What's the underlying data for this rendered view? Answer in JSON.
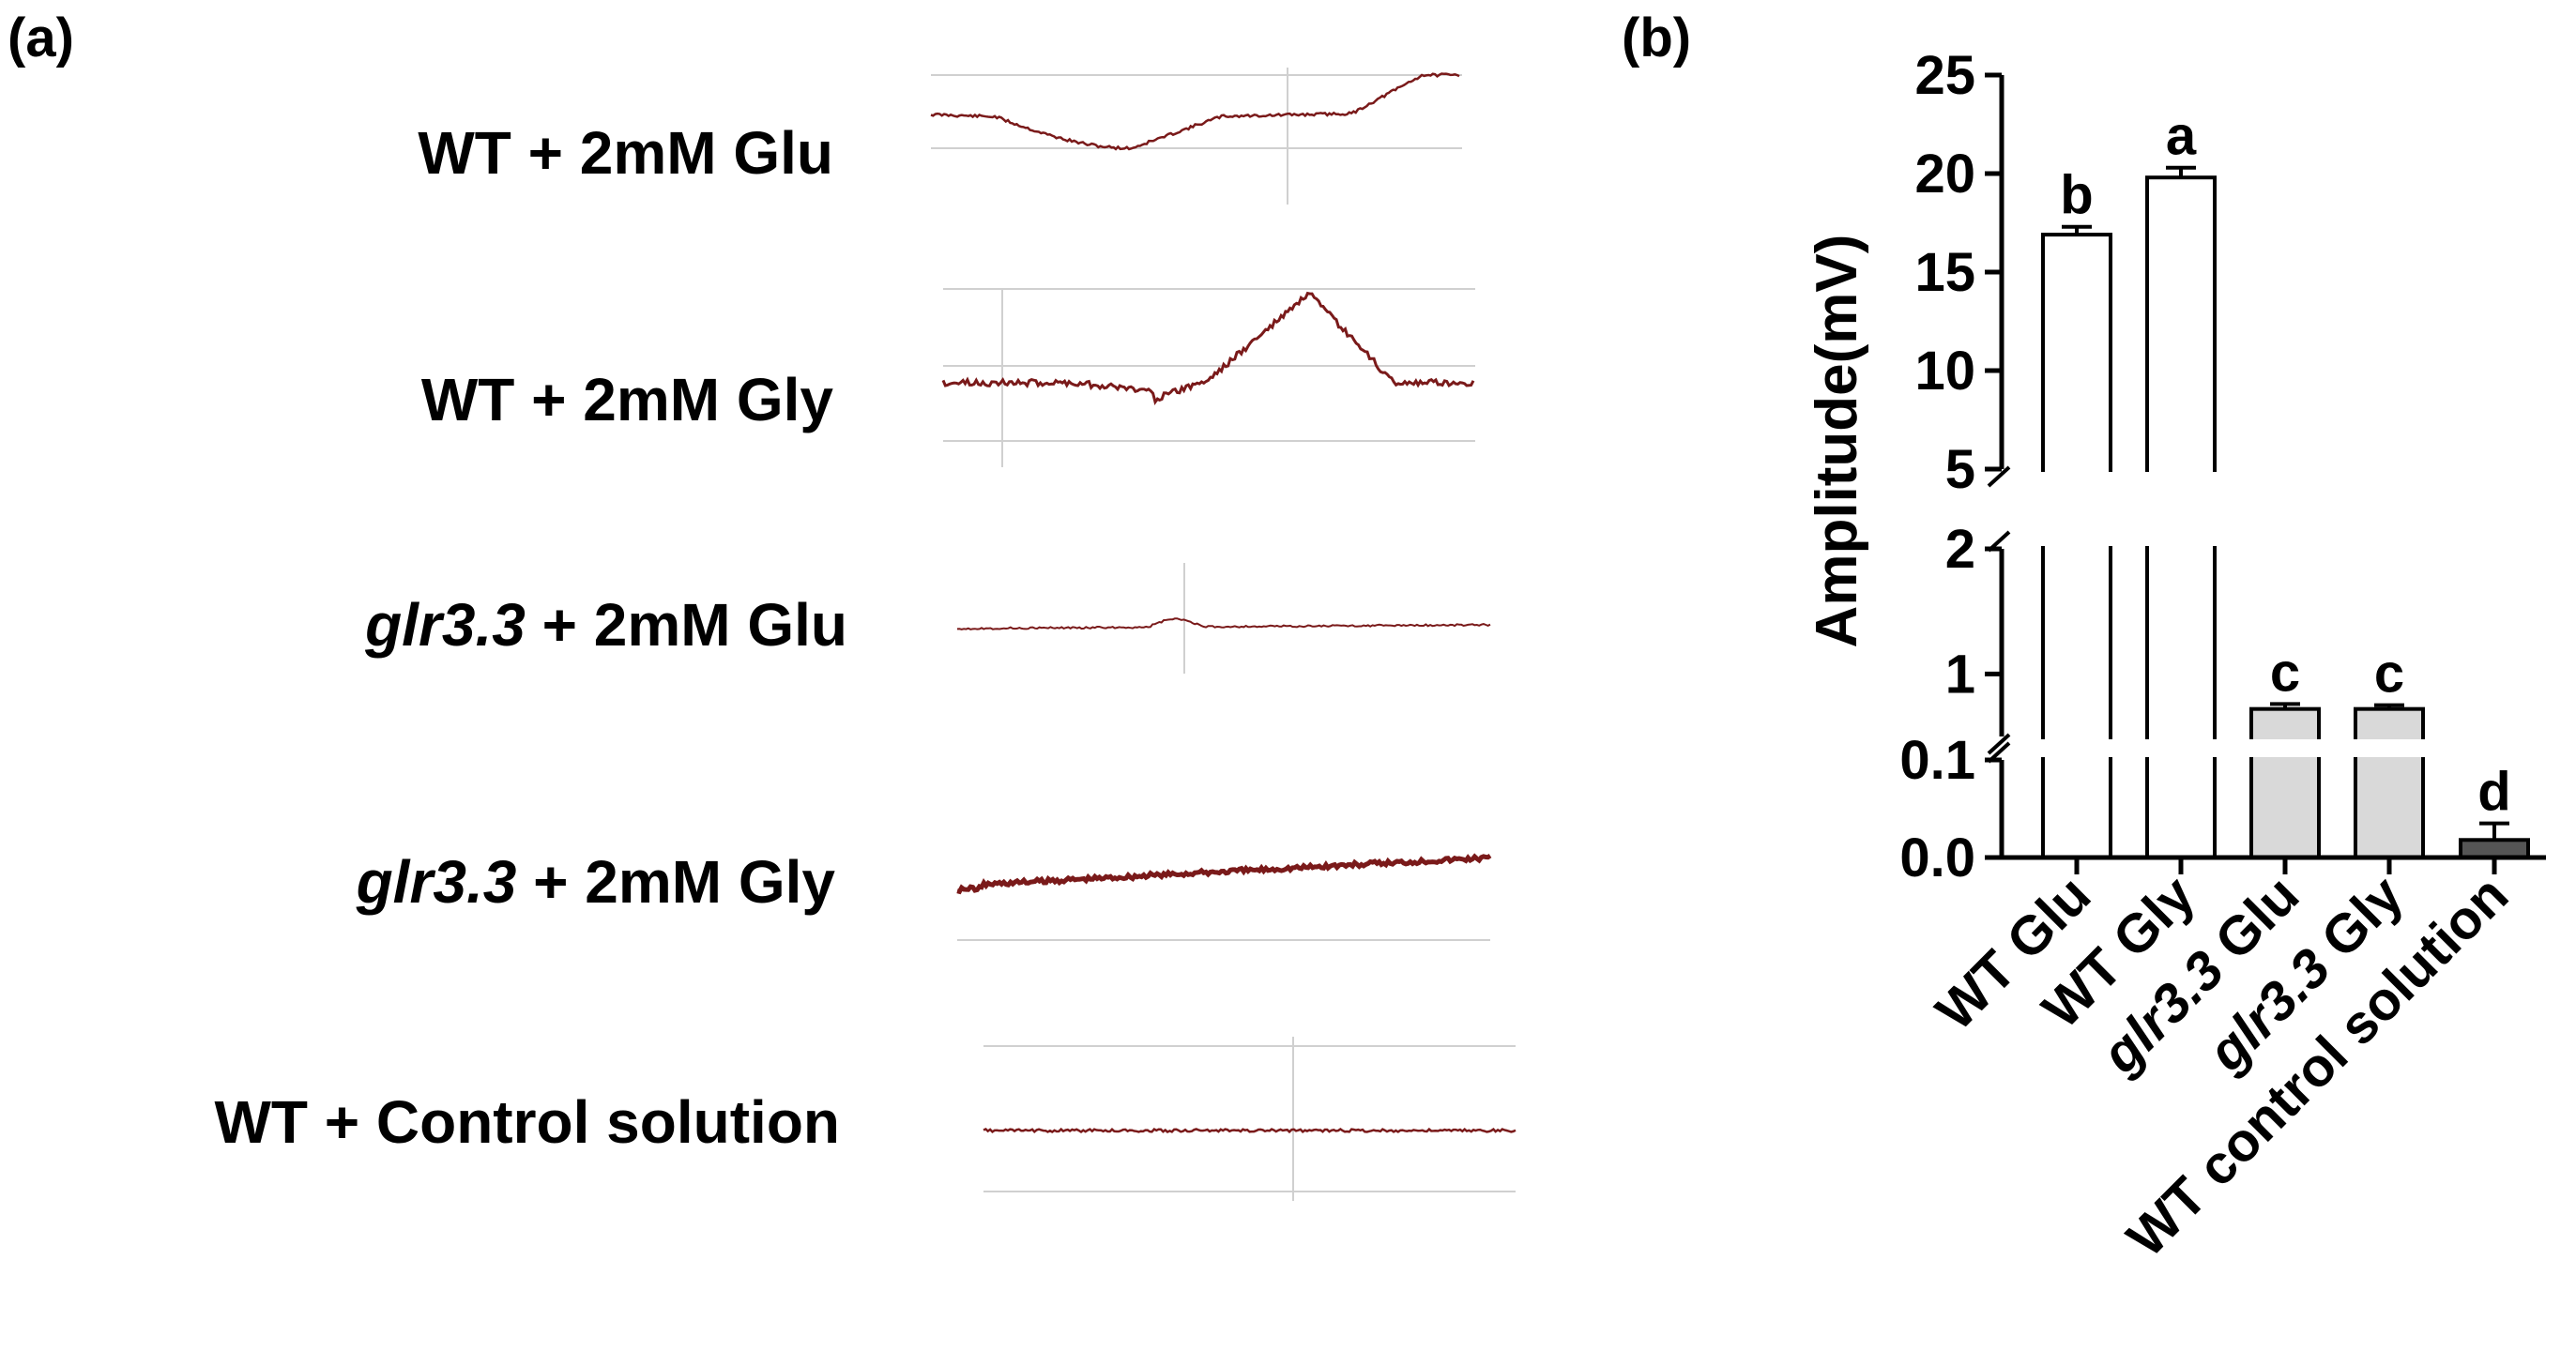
{
  "panel_a": {
    "label": "(a)",
    "rows": [
      {
        "genotype": "WT",
        "italic": false,
        "treatment": " + 2mM Glu"
      },
      {
        "genotype": "WT",
        "italic": false,
        "treatment": " + 2mM Gly"
      },
      {
        "genotype": "glr3.3",
        "italic": true,
        "treatment": " + 2mM Glu"
      },
      {
        "genotype": "glr3.3",
        "italic": true,
        "treatment": " + 2mM Gly"
      },
      {
        "genotype": "WT",
        "italic": false,
        "treatment": " + Control solution"
      }
    ],
    "trace_color": "#7a1a1a",
    "grid_color": "#d0d0d0"
  },
  "chart_data": {
    "type": "bar",
    "panel_label": "(b)",
    "title": "",
    "xlabel": "",
    "ylabel": "Amplitude(mV)",
    "broken_axis": true,
    "segments": [
      {
        "range": [
          0,
          0.1
        ],
        "ticks": [
          "0.0",
          "0.1"
        ]
      },
      {
        "range": [
          0.5,
          2
        ],
        "ticks": [
          "1",
          "2"
        ]
      },
      {
        "range": [
          5,
          25
        ],
        "ticks": [
          "5",
          "10",
          "15",
          "20",
          "25"
        ]
      }
    ],
    "categories": [
      {
        "genotype": "WT",
        "italic": false,
        "treatment": " Glu"
      },
      {
        "genotype": "WT",
        "italic": false,
        "treatment": " Gly"
      },
      {
        "genotype": "glr3.3",
        "italic": true,
        "treatment": " Glu"
      },
      {
        "genotype": "glr3.3",
        "italic": true,
        "treatment": " Gly"
      },
      {
        "genotype": "WT",
        "italic": false,
        "treatment": " control solution"
      }
    ],
    "values": [
      16.9,
      19.8,
      0.72,
      0.72,
      0.018
    ],
    "errors": [
      0.4,
      0.5,
      0.04,
      0.03,
      0.017
    ],
    "significance": [
      "b",
      "a",
      "c",
      "c",
      "d"
    ],
    "bar_fills": [
      "#ffffff",
      "#ffffff",
      "#d9d9d9",
      "#d9d9d9",
      "#555555"
    ]
  }
}
